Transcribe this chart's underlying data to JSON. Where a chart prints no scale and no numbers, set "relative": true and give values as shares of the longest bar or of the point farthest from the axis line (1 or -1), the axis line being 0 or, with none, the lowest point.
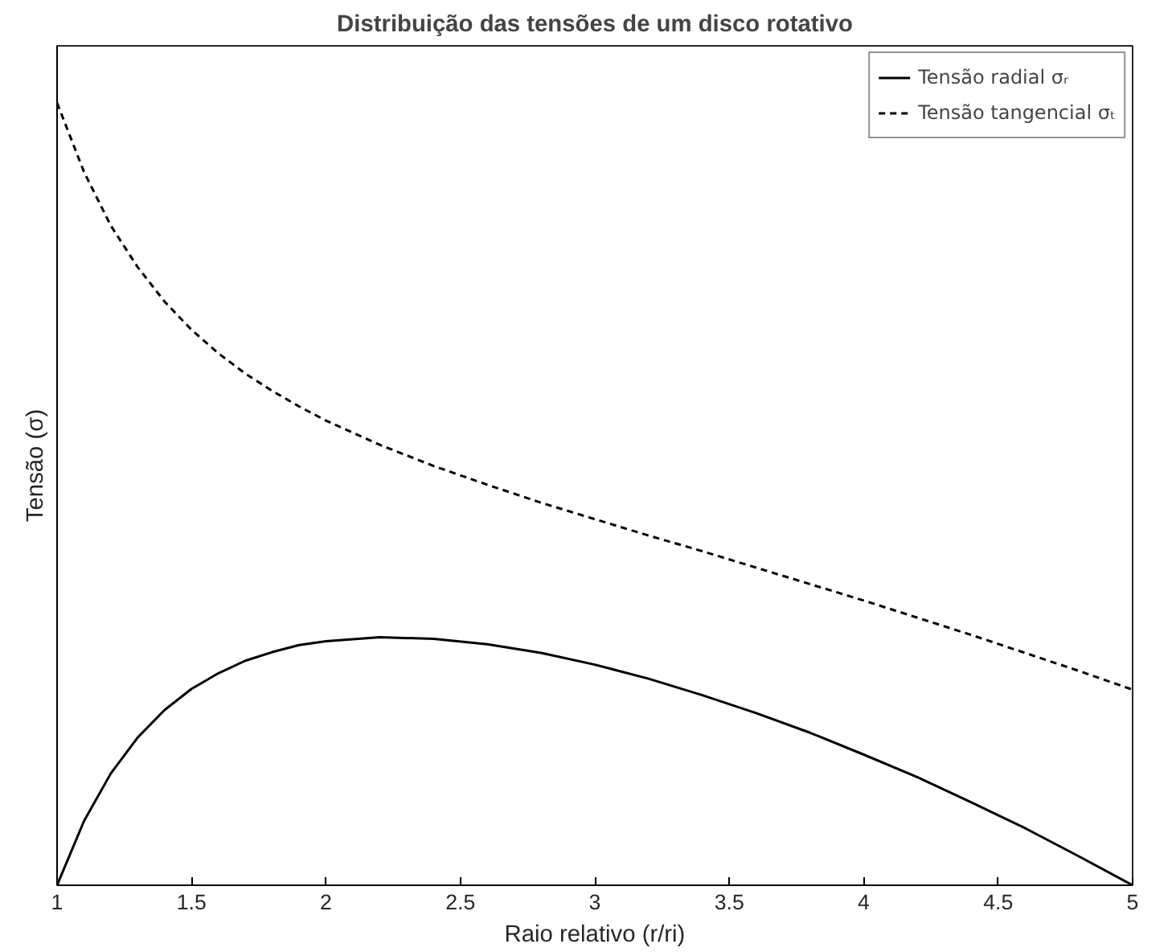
{
  "chart_data": {
    "type": "line",
    "title": "Distribuição das tensões de um disco rotativo",
    "xlabel": "Raio relativo (r/ri)",
    "ylabel": "Tensão (σ)",
    "relative": true,
    "x": [
      1,
      1.1,
      1.2,
      1.3,
      1.4,
      1.5,
      1.6,
      1.7,
      1.8,
      1.9,
      2.0,
      2.2,
      2.4,
      2.6,
      2.8,
      3.0,
      3.2,
      3.4,
      3.6,
      3.8,
      4.0,
      4.2,
      4.4,
      4.6,
      4.8,
      5.0
    ],
    "xlim": [
      1,
      5
    ],
    "xticks": [
      1,
      1.5,
      2,
      2.5,
      3,
      3.5,
      4,
      4.5,
      5
    ],
    "grid": false,
    "legend": "top right",
    "series": [
      {
        "name": "Tensão radial σᵣ",
        "color": "#000000",
        "line_style": "solid",
        "values": [
          0,
          0.082,
          0.143,
          0.189,
          0.224,
          0.251,
          0.271,
          0.287,
          0.298,
          0.307,
          0.312,
          0.317,
          0.315,
          0.308,
          0.297,
          0.282,
          0.264,
          0.243,
          0.22,
          0.195,
          0.167,
          0.138,
          0.106,
          0.073,
          0.037,
          0
        ]
      },
      {
        "name": "Tensão tangencial σₜ",
        "color": "#000000",
        "line_style": "dashed",
        "values": [
          1,
          0.912,
          0.843,
          0.79,
          0.746,
          0.71,
          0.68,
          0.654,
          0.632,
          0.612,
          0.594,
          0.563,
          0.536,
          0.512,
          0.489,
          0.468,
          0.447,
          0.427,
          0.406,
          0.385,
          0.364,
          0.342,
          0.32,
          0.297,
          0.274,
          0.25
        ]
      }
    ]
  }
}
